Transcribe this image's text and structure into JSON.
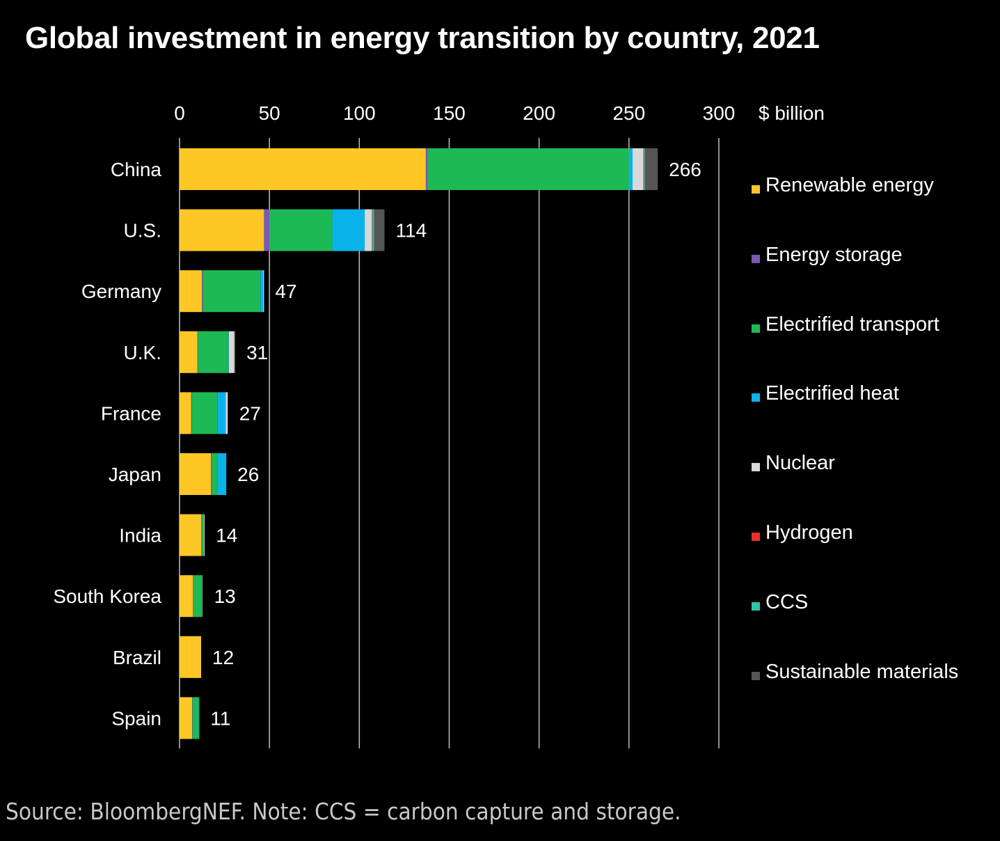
{
  "title": "Global investment in energy transition by country, 2021",
  "source_note": "Source: BloombergNEF. Note: CCS = carbon capture and storage.",
  "colors": {
    "background": "#000000",
    "text": "#ffffff",
    "gridline": "#bfbfbf"
  },
  "chart_data": {
    "type": "bar",
    "orientation": "horizontal",
    "stacked": true,
    "unit_label": "$ billion",
    "xlim": [
      0,
      300
    ],
    "xticks": [
      0,
      50,
      100,
      150,
      200,
      250,
      300
    ],
    "grid": true,
    "legend_position": "right",
    "categories": [
      "China",
      "U.S.",
      "Germany",
      "U.K.",
      "France",
      "Japan",
      "India",
      "South Korea",
      "Brazil",
      "Spain"
    ],
    "totals": [
      266,
      114,
      47,
      31,
      27,
      26,
      14,
      13,
      12,
      11
    ],
    "series": [
      {
        "name": "Renewable energy",
        "color": "#ffc726",
        "values": [
          137,
          47,
          12.5,
          10,
          6.5,
          17.5,
          12,
          7.5,
          12,
          7
        ]
      },
      {
        "name": "Energy storage",
        "color": "#7e57b5",
        "values": [
          1,
          3,
          0.5,
          0.2,
          0.2,
          0.5,
          0.2,
          0.2,
          0,
          0.2
        ]
      },
      {
        "name": "Electrified transport",
        "color": "#1db954",
        "values": [
          112,
          35,
          32,
          17,
          14.5,
          3,
          1,
          5,
          0,
          3.5
        ]
      },
      {
        "name": "Electrified heat",
        "color": "#09b3ea",
        "values": [
          2,
          18,
          1.5,
          0.2,
          4.5,
          5,
          0.3,
          0,
          0,
          0
        ]
      },
      {
        "name": "Nuclear",
        "color": "#d9d9d9",
        "values": [
          6,
          4,
          0.5,
          3,
          1,
          0,
          0.4,
          0,
          0,
          0
        ]
      },
      {
        "name": "Hydrogen",
        "color": "#e8302a",
        "values": [
          0.5,
          0.3,
          0,
          0.1,
          0.1,
          0,
          0,
          0.1,
          0,
          0
        ]
      },
      {
        "name": "CCS",
        "color": "#2ec4a9",
        "values": [
          0.5,
          1,
          0,
          0.2,
          0,
          0,
          0,
          0,
          0,
          0.3
        ]
      },
      {
        "name": "Sustainable materials",
        "color": "#555555",
        "values": [
          7,
          5.7,
          0,
          0.3,
          0.2,
          0,
          0.1,
          0.2,
          0,
          0
        ]
      }
    ]
  }
}
